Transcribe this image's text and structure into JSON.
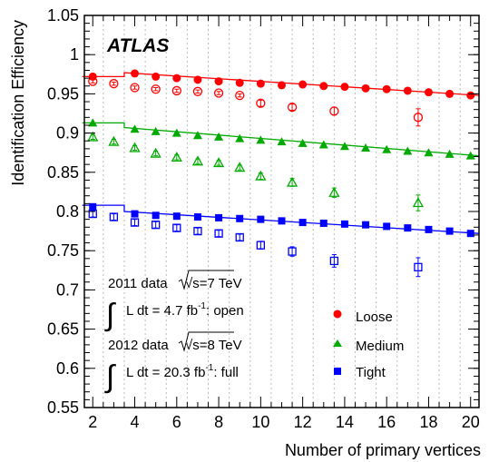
{
  "chart_data": {
    "type": "scatter",
    "title": "ATLAS",
    "xlabel": "Number of primary vertices",
    "ylabel": "Identification Efficiency",
    "xlim": [
      1.6,
      20.4
    ],
    "ylim": [
      0.55,
      1.05
    ],
    "xticks": [
      2,
      4,
      6,
      8,
      10,
      12,
      14,
      16,
      18,
      20
    ],
    "xtick_labels": [
      "2",
      "4",
      "6",
      "8",
      "10",
      "12",
      "14",
      "16",
      "18",
      "20"
    ],
    "yticks": [
      0.55,
      0.6,
      0.65,
      0.7,
      0.75,
      0.8,
      0.85,
      0.9,
      0.95,
      1.0,
      1.05
    ],
    "ytick_labels": [
      "0.55",
      "0.6",
      "0.65",
      "0.7",
      "0.75",
      "0.8",
      "0.85",
      "0.9",
      "0.95",
      "1",
      "1.05"
    ],
    "grid": "dotted vertical bin boundaries",
    "legend_position": "bottom-right",
    "annotations": {
      "line1_a": "2011 data",
      "line1_sqrt": "√s=7 TeV",
      "line2_int": "∫",
      "line2_a": "L dt = 4.7 fb",
      "line2_sup": "-1",
      "line2_b": ":   open",
      "line3_a": "2012 data",
      "line3_sqrt": "√s=8 TeV",
      "line4_int": "∫",
      "line4_a": "L dt = 20.3 fb",
      "line4_sup": "-1",
      "line4_b": ": full"
    },
    "bin_edges": [
      1.5,
      2.5,
      3.5,
      4.5,
      5.5,
      6.5,
      7.5,
      8.5,
      9.5,
      10.5,
      11.5,
      12.5,
      13.5,
      14.5,
      15.5,
      16.5,
      17.5,
      18.5,
      19.5,
      20.5
    ],
    "series": [
      {
        "name": "Loose",
        "color": "#ff0000",
        "marker": "circle",
        "data_2012": {
          "x": [
            2,
            4,
            5,
            6,
            7,
            8,
            9,
            10,
            11,
            12,
            13,
            14,
            15,
            16,
            17,
            18,
            19,
            20
          ],
          "y": [
            0.972,
            0.976,
            0.972,
            0.97,
            0.968,
            0.966,
            0.964,
            0.963,
            0.961,
            0.962,
            0.96,
            0.959,
            0.957,
            0.956,
            0.954,
            0.952,
            0.95,
            0.948
          ]
        },
        "data_2011": {
          "x": [
            2,
            3,
            4,
            5,
            6,
            7,
            8,
            9,
            10,
            11.5,
            13.5,
            17.5
          ],
          "y": [
            0.966,
            0.963,
            0.958,
            0.956,
            0.954,
            0.953,
            0.951,
            0.948,
            0.938,
            0.933,
            0.928,
            0.92
          ],
          "err": [
            0.002,
            0.002,
            0.002,
            0.002,
            0.002,
            0.002,
            0.002,
            0.002,
            0.004,
            0.004,
            0.005,
            0.011
          ]
        },
        "fit_2012": [
          [
            1.5,
            0.972
          ],
          [
            3.5,
            0.972
          ],
          [
            3.5,
            0.977
          ],
          [
            20.4,
            0.948
          ]
        ]
      },
      {
        "name": "Medium",
        "color": "#00aa00",
        "marker": "triangle",
        "data_2012": {
          "x": [
            2,
            4,
            5,
            6,
            7,
            8,
            9,
            10,
            11,
            12,
            13,
            14,
            15,
            16,
            17,
            18,
            19,
            20
          ],
          "y": [
            0.913,
            0.905,
            0.902,
            0.9,
            0.897,
            0.895,
            0.893,
            0.891,
            0.889,
            0.887,
            0.885,
            0.883,
            0.881,
            0.879,
            0.877,
            0.875,
            0.873,
            0.871
          ]
        },
        "data_2011": {
          "x": [
            2,
            3,
            4,
            5,
            6,
            7,
            8,
            9,
            10,
            11.5,
            13.5,
            17.5
          ],
          "y": [
            0.895,
            0.889,
            0.881,
            0.874,
            0.869,
            0.864,
            0.862,
            0.856,
            0.845,
            0.837,
            0.824,
            0.811
          ],
          "err": [
            0.003,
            0.003,
            0.003,
            0.003,
            0.003,
            0.003,
            0.003,
            0.003,
            0.004,
            0.005,
            0.006,
            0.01
          ]
        },
        "fit_2012": [
          [
            1.5,
            0.913
          ],
          [
            3.5,
            0.913
          ],
          [
            3.5,
            0.907
          ],
          [
            20.4,
            0.871
          ]
        ]
      },
      {
        "name": "Tight",
        "color": "#0000ff",
        "marker": "square",
        "data_2012": {
          "x": [
            2,
            4,
            5,
            6,
            7,
            8,
            9,
            10,
            11,
            12,
            13,
            14,
            15,
            16,
            17,
            18,
            19,
            20
          ],
          "y": [
            0.806,
            0.797,
            0.795,
            0.794,
            0.793,
            0.792,
            0.791,
            0.79,
            0.788,
            0.786,
            0.785,
            0.784,
            0.783,
            0.781,
            0.779,
            0.777,
            0.775,
            0.772
          ]
        },
        "data_2011": {
          "x": [
            2,
            3,
            4,
            5,
            6,
            7,
            8,
            9,
            10,
            11.5,
            13.5,
            17.5
          ],
          "y": [
            0.797,
            0.793,
            0.786,
            0.783,
            0.779,
            0.775,
            0.772,
            0.767,
            0.757,
            0.749,
            0.737,
            0.729
          ],
          "err": [
            0.004,
            0.004,
            0.004,
            0.004,
            0.004,
            0.004,
            0.004,
            0.004,
            0.005,
            0.006,
            0.008,
            0.012
          ]
        },
        "fit_2012": [
          [
            1.5,
            0.808
          ],
          [
            3.5,
            0.808
          ],
          [
            3.5,
            0.8
          ],
          [
            20.4,
            0.772
          ]
        ]
      }
    ]
  }
}
